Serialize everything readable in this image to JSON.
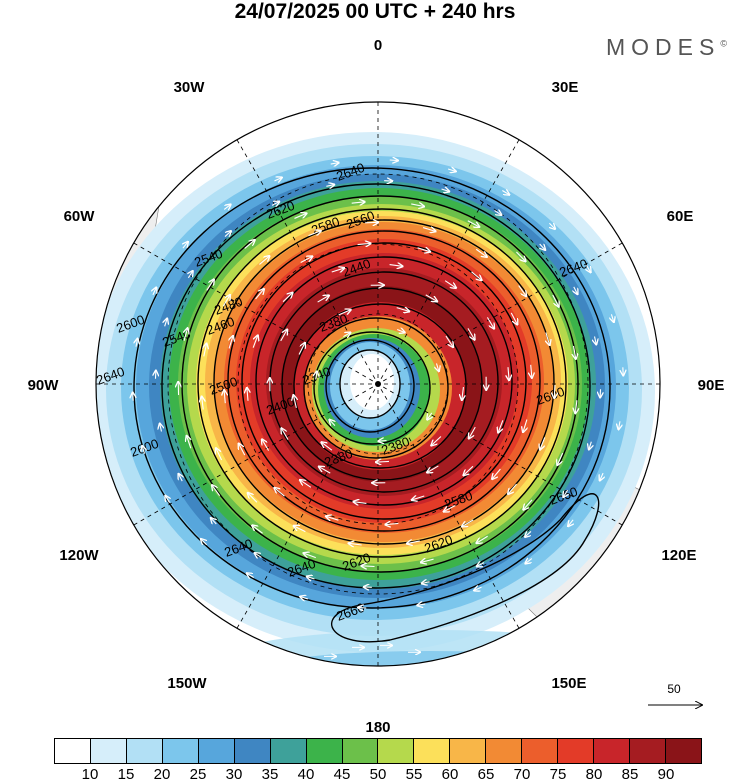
{
  "header": {
    "title": "24/07/2025  00 UTC  + 240 hrs",
    "brand": "MODES"
  },
  "map": {
    "projection": "south-polar-stereographic",
    "longitude_labels": {
      "top": "0",
      "bottom": "180",
      "left": "90W",
      "right": "90E",
      "upper_left_1": "30W",
      "upper_left_2": "60W",
      "upper_right_1": "30E",
      "upper_right_2": "60E",
      "lower_left_1": "120W",
      "lower_left_2": "150W",
      "lower_right_1": "120E",
      "lower_right_2": "150E"
    },
    "contour_labels": [
      "2640",
      "2620",
      "2600",
      "2580",
      "2560",
      "2540",
      "2520",
      "2500",
      "2480",
      "2460",
      "2440",
      "2420",
      "2400",
      "2380",
      "2360",
      "2340",
      "2660"
    ],
    "vector_reference": "50",
    "colors": {
      "land": "#eeeeee",
      "wind_palette": [
        "#ffffff",
        "#d6eefa",
        "#b2e0f5",
        "#7cc6ec",
        "#57a6dc",
        "#3f86c2",
        "#3ea19a",
        "#3cb34a",
        "#6cc04a",
        "#b5d94c",
        "#fce05a",
        "#f8b648",
        "#f28a34",
        "#ec5e2c",
        "#e33b28",
        "#c8252a",
        "#a51c21",
        "#8a1418"
      ]
    }
  },
  "colorbar": {
    "ticks": [
      "10",
      "15",
      "20",
      "25",
      "30",
      "35",
      "40",
      "45",
      "50",
      "55",
      "60",
      "65",
      "70",
      "75",
      "80",
      "85",
      "90"
    ]
  }
}
